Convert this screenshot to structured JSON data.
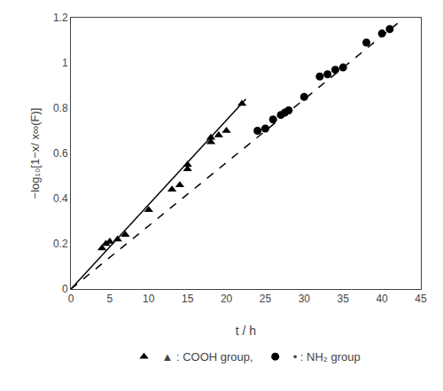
{
  "chart_data": {
    "type": "scatter",
    "xlabel": "t / h",
    "ylabel": "−log₁₀[1−x/ x∞(F)]",
    "xlim": [
      0,
      45
    ],
    "ylim": [
      0,
      1.2
    ],
    "xticks": [
      0,
      5,
      10,
      15,
      20,
      25,
      30,
      35,
      40,
      45
    ],
    "yticks": [
      0,
      0.2,
      0.4,
      0.6,
      0.8,
      1,
      1.2
    ],
    "grid": false,
    "legend": "bottom",
    "series": [
      {
        "type": "line",
        "line_style": "solid",
        "color": "#000000",
        "x": [
          0,
          22.5
        ],
        "values": [
          0,
          0.84
        ]
      },
      {
        "type": "line",
        "line_style": "dashed",
        "color": "#000000",
        "x": [
          0,
          42
        ],
        "values": [
          0,
          1.175
        ]
      },
      {
        "type": "scatter",
        "name": "▲ : COOH group,",
        "marker": "triangle-up",
        "color": "#000000",
        "x": [
          4,
          4.5,
          5,
          6,
          7,
          10,
          13,
          14,
          15,
          15,
          18,
          18,
          19,
          20,
          22
        ],
        "values": [
          0.18,
          0.2,
          0.21,
          0.22,
          0.24,
          0.35,
          0.44,
          0.46,
          0.53,
          0.55,
          0.65,
          0.67,
          0.68,
          0.7,
          0.82
        ]
      },
      {
        "type": "scatter",
        "name": "• : NH₂ group",
        "marker": "circle",
        "color": "#000000",
        "x": [
          24,
          25,
          26,
          27,
          27.5,
          28,
          30,
          32,
          33,
          34,
          35,
          38,
          40,
          41
        ],
        "values": [
          0.7,
          0.71,
          0.75,
          0.77,
          0.78,
          0.79,
          0.85,
          0.94,
          0.95,
          0.97,
          0.98,
          1.09,
          1.13,
          1.15
        ]
      }
    ]
  }
}
